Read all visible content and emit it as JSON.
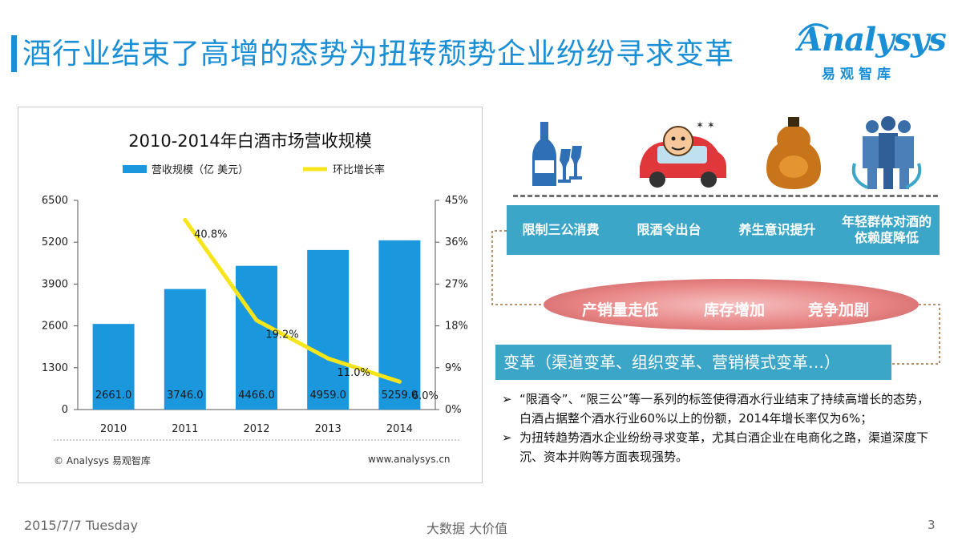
{
  "header": {
    "title": "酒行业结束了高增的态势为扭转颓势企业纷纷寻求变革"
  },
  "logo": {
    "word": "Analysys",
    "cn": "易观智库"
  },
  "chart_data": {
    "type": "bar",
    "title": "2010-2014年白酒市场营收规模",
    "categories": [
      "2010",
      "2011",
      "2012",
      "2013",
      "2014"
    ],
    "series": [
      {
        "name": "营收规模（亿 美元）",
        "type": "bar",
        "axis": "left",
        "color": "#1a97dd",
        "values": [
          2661.0,
          3746.0,
          4466.0,
          4959.0,
          5259.0
        ],
        "labels": [
          "2661.0",
          "3746.0",
          "4466.0",
          "4959.0",
          "5259.0"
        ]
      },
      {
        "name": "环比增长率",
        "type": "line",
        "axis": "right",
        "color": "#f6e51a",
        "values": [
          null,
          40.8,
          19.2,
          11.0,
          6.0
        ],
        "labels": [
          "",
          "40.8%",
          "19.2%",
          "11.0%",
          "6.0%"
        ]
      }
    ],
    "y_left": {
      "ticks": [
        "0",
        "1300",
        "2600",
        "3900",
        "5200",
        "6500"
      ],
      "ylim": [
        0,
        6500
      ]
    },
    "y_right": {
      "ticks": [
        "0%",
        "9%",
        "18%",
        "27%",
        "36%",
        "45%"
      ],
      "ylim": [
        0,
        45
      ]
    },
    "legend": "top",
    "grid": false
  },
  "chart_footer": {
    "copyright": "© Analysys 易观智库",
    "website": "www.analysys.cn"
  },
  "causes": [
    "限制三公消费",
    "限酒令出台",
    "养生意识提升",
    "年轻群体对酒的依赖度降低"
  ],
  "effects": [
    "产销量走低",
    "库存增加",
    "竞争加剧"
  ],
  "reform": "变革（渠道变革、组织变革、营销模式变革…）",
  "bullets": [
    "“限酒令”、“限三公”等一系列的标签使得酒水行业结束了持续高增长的态势，白酒占据整个酒水行业60%以上的份额，2014年增长率仅为6%；",
    "为扭转趋势酒水企业纷纷寻求变革，尤其白酒企业在电商化之路，渠道深度下沉、资本并购等方面表现强势。"
  ],
  "bullet_marker": "➢",
  "footer": {
    "date": "2015/7/7 Tuesday",
    "center": "大数据    大价值",
    "page": "3"
  },
  "icons": [
    "wine-bottle-glasses-icon",
    "drunk-driver-car-icon",
    "liquor-gourd-bottle-icon",
    "people-group-icon"
  ]
}
